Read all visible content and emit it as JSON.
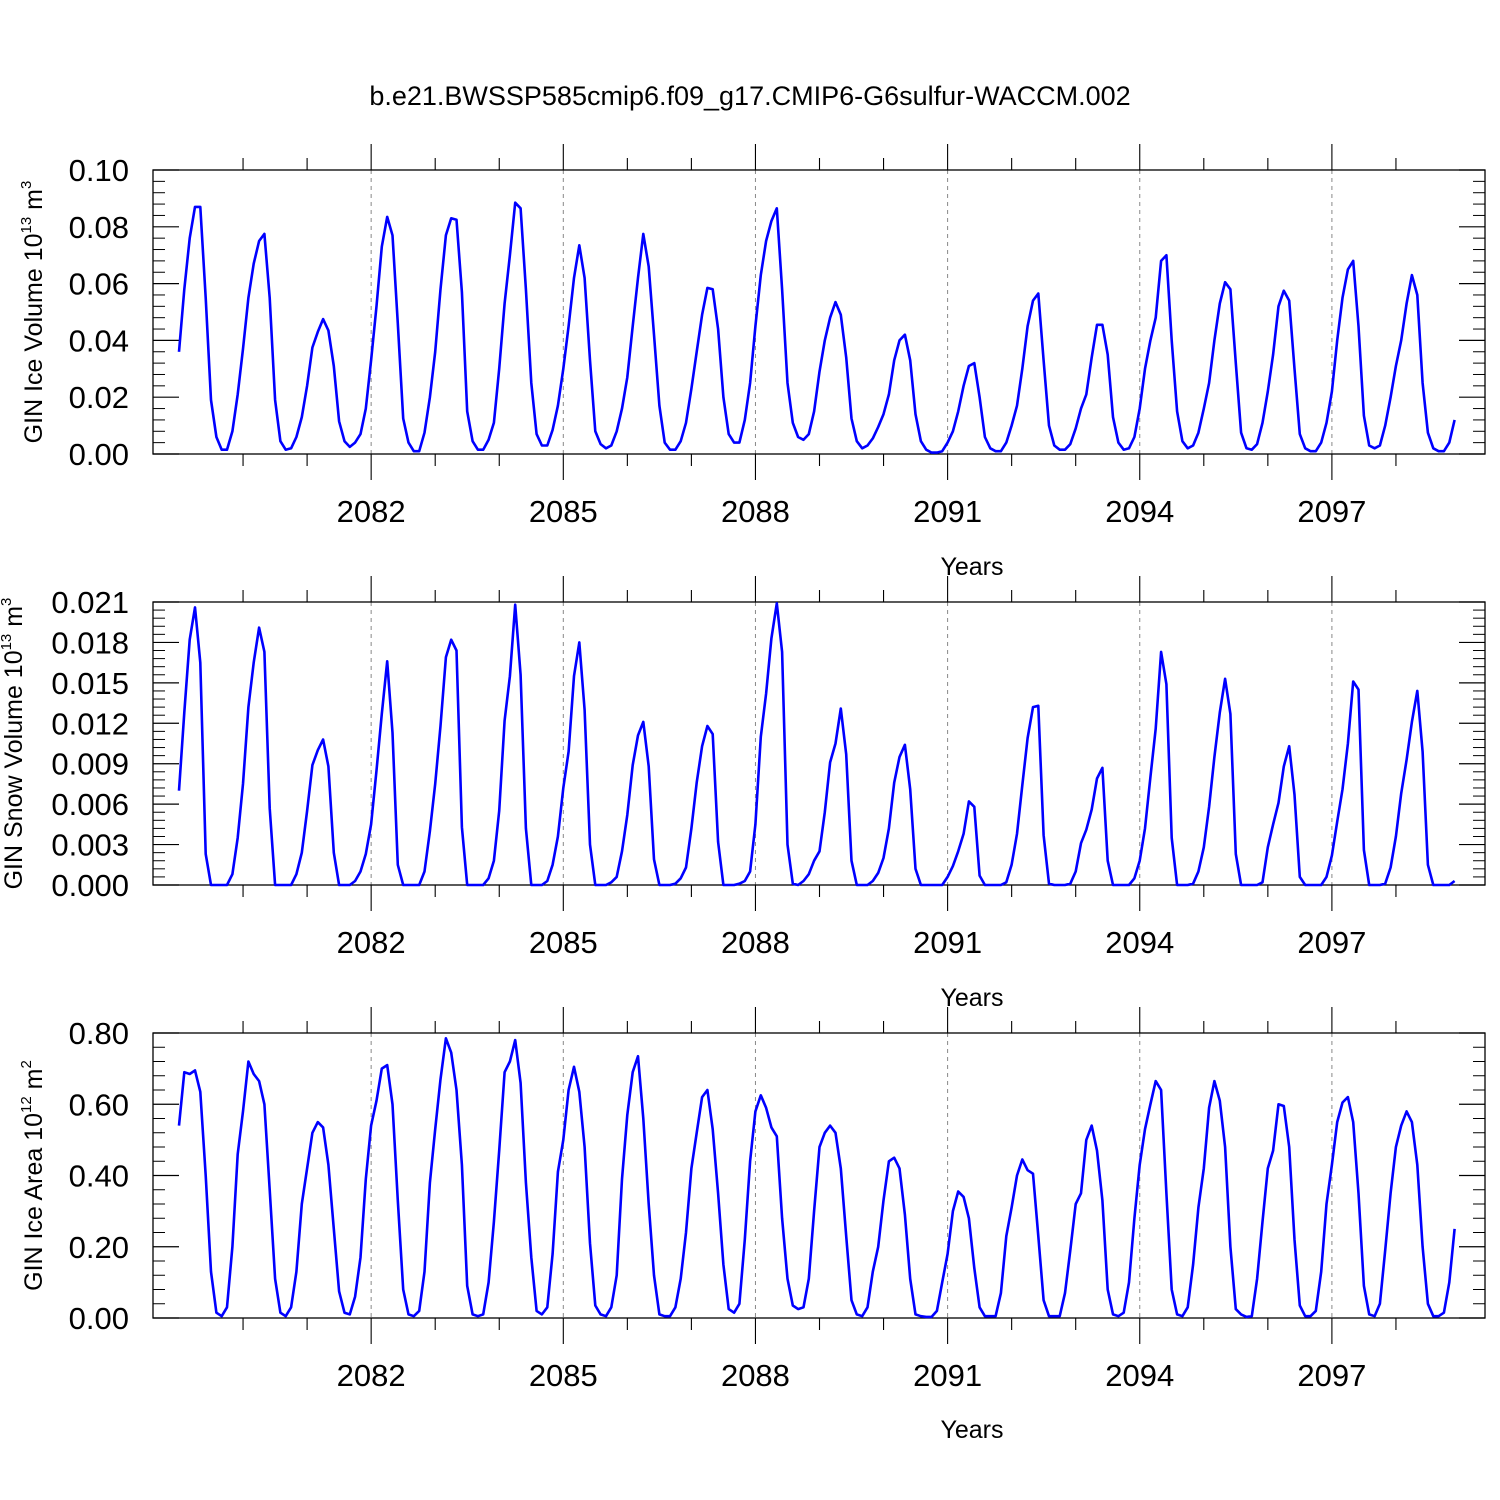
{
  "figure_title": "b.e21.BWSSP585cmip6.f09_g17.CMIP6-G6sulfur-WACCM.002",
  "colors": {
    "series": "#0000ff",
    "frame": "#000000",
    "grid": "#888888"
  },
  "chart_data": [
    {
      "type": "line",
      "name": "ice-volume",
      "ylabel_main": "GIN Ice Volume 10",
      "ylabel_exp": "13",
      "ylabel_unit": " m",
      "ylabel_unit_exp": "3",
      "xlabel": "Years",
      "xlim": [
        2079.0,
        2099.0
      ],
      "ylim": [
        0.0,
        0.1
      ],
      "yticks": [
        0.0,
        0.02,
        0.04,
        0.06,
        0.08,
        0.1
      ],
      "ytick_labels": [
        "0.00",
        "0.02",
        "0.04",
        "0.06",
        "0.08",
        "0.10"
      ],
      "xticks": [
        2082,
        2085,
        2088,
        2091,
        2094,
        2097
      ],
      "xtick_labels": [
        "2082",
        "2085",
        "2088",
        "2091",
        "2094",
        "2097"
      ],
      "grid_x": true,
      "series": [
        {
          "x_start": 2079.0,
          "x_step": 0.08333,
          "values": [
            0.036,
            0.058,
            0.076,
            0.087,
            0.087,
            0.055,
            0.019,
            0.006,
            0.0015,
            0.0015,
            0.008,
            0.021,
            0.037,
            0.055,
            0.067,
            0.075,
            0.0775,
            0.055,
            0.019,
            0.0045,
            0.0015,
            0.002,
            0.006,
            0.013,
            0.024,
            0.0375,
            0.043,
            0.0475,
            0.0435,
            0.031,
            0.0115,
            0.0045,
            0.0025,
            0.004,
            0.007,
            0.016,
            0.033,
            0.052,
            0.073,
            0.0835,
            0.077,
            0.046,
            0.0125,
            0.004,
            0.001,
            0.001,
            0.0075,
            0.02,
            0.036,
            0.058,
            0.077,
            0.083,
            0.0825,
            0.057,
            0.015,
            0.0045,
            0.0015,
            0.0015,
            0.005,
            0.011,
            0.03,
            0.053,
            0.07,
            0.0885,
            0.0865,
            0.058,
            0.025,
            0.007,
            0.003,
            0.003,
            0.0085,
            0.017,
            0.03,
            0.045,
            0.062,
            0.0735,
            0.062,
            0.033,
            0.008,
            0.0035,
            0.002,
            0.003,
            0.008,
            0.016,
            0.027,
            0.045,
            0.062,
            0.0775,
            0.066,
            0.042,
            0.017,
            0.004,
            0.0015,
            0.0015,
            0.0045,
            0.011,
            0.023,
            0.036,
            0.049,
            0.0585,
            0.058,
            0.044,
            0.02,
            0.007,
            0.004,
            0.004,
            0.012,
            0.025,
            0.045,
            0.063,
            0.075,
            0.082,
            0.0865,
            0.058,
            0.025,
            0.011,
            0.006,
            0.005,
            0.007,
            0.015,
            0.029,
            0.04,
            0.048,
            0.0535,
            0.049,
            0.034,
            0.0125,
            0.0045,
            0.002,
            0.003,
            0.0055,
            0.0095,
            0.014,
            0.021,
            0.033,
            0.04,
            0.042,
            0.033,
            0.014,
            0.0045,
            0.0015,
            0.0005,
            0.0005,
            0.001,
            0.004,
            0.008,
            0.015,
            0.024,
            0.031,
            0.032,
            0.02,
            0.006,
            0.002,
            0.001,
            0.001,
            0.004,
            0.01,
            0.017,
            0.03,
            0.045,
            0.054,
            0.0565,
            0.033,
            0.01,
            0.003,
            0.0015,
            0.0015,
            0.0035,
            0.009,
            0.016,
            0.021,
            0.034,
            0.0455,
            0.0455,
            0.035,
            0.013,
            0.004,
            0.0015,
            0.002,
            0.006,
            0.016,
            0.03,
            0.04,
            0.048,
            0.068,
            0.07,
            0.04,
            0.015,
            0.0045,
            0.002,
            0.003,
            0.0075,
            0.016,
            0.025,
            0.04,
            0.053,
            0.0605,
            0.058,
            0.032,
            0.0075,
            0.002,
            0.0015,
            0.0035,
            0.011,
            0.022,
            0.035,
            0.052,
            0.0575,
            0.054,
            0.03,
            0.007,
            0.002,
            0.001,
            0.001,
            0.004,
            0.011,
            0.022,
            0.04,
            0.055,
            0.065,
            0.068,
            0.045,
            0.0135,
            0.003,
            0.002,
            0.003,
            0.01,
            0.02,
            0.031,
            0.04,
            0.053,
            0.063,
            0.056,
            0.025,
            0.0075,
            0.002,
            0.001,
            0.001,
            0.004,
            0.012
          ]
        }
      ]
    },
    {
      "type": "line",
      "name": "snow-volume",
      "ylabel_main": "GIN Snow Volume 10",
      "ylabel_exp": "13",
      "ylabel_unit": " m",
      "ylabel_unit_exp": "3",
      "xlabel": "Years",
      "xlim": [
        2079.0,
        2099.0
      ],
      "ylim": [
        0.0,
        0.021
      ],
      "yticks": [
        0.0,
        0.003,
        0.006,
        0.009,
        0.012,
        0.015,
        0.018,
        0.021
      ],
      "ytick_labels": [
        "0.000",
        "0.003",
        "0.006",
        "0.009",
        "0.012",
        "0.015",
        "0.018",
        "0.021"
      ],
      "xticks": [
        2082,
        2085,
        2088,
        2091,
        2094,
        2097
      ],
      "xtick_labels": [
        "2082",
        "2085",
        "2088",
        "2091",
        "2094",
        "2097"
      ],
      "grid_x": true,
      "series": [
        {
          "x_start": 2079.0,
          "x_step": 0.08333,
          "values": [
            0.007,
            0.0128,
            0.0182,
            0.0206,
            0.0165,
            0.0023,
            0.0,
            0.0,
            0.0,
            0.0,
            0.0008,
            0.0035,
            0.0075,
            0.0132,
            0.0165,
            0.0191,
            0.0173,
            0.0057,
            0.0,
            0.0,
            0.0,
            0.0,
            0.0008,
            0.0024,
            0.0055,
            0.0089,
            0.01,
            0.0108,
            0.0088,
            0.0024,
            0.0,
            0.0,
            0.0,
            0.0003,
            0.001,
            0.0023,
            0.0045,
            0.0085,
            0.0127,
            0.0166,
            0.0113,
            0.0015,
            0.0,
            0.0,
            0.0,
            0.0,
            0.001,
            0.004,
            0.0075,
            0.0118,
            0.0169,
            0.0182,
            0.0174,
            0.0043,
            0.0,
            0.0,
            0.0,
            0.0,
            0.0005,
            0.0018,
            0.0055,
            0.0122,
            0.0155,
            0.0208,
            0.0156,
            0.0042,
            0.0,
            0.0,
            0.0,
            0.0003,
            0.0015,
            0.0036,
            0.0072,
            0.0099,
            0.0155,
            0.018,
            0.013,
            0.003,
            0.0,
            0.0,
            0.0,
            0.0002,
            0.0006,
            0.0025,
            0.0052,
            0.0089,
            0.0111,
            0.0121,
            0.0088,
            0.0019,
            0.0,
            0.0,
            0.0,
            0.0001,
            0.0005,
            0.0013,
            0.0042,
            0.0076,
            0.0103,
            0.0118,
            0.0112,
            0.0032,
            0.0,
            0.0,
            0.0,
            0.0001,
            0.0003,
            0.001,
            0.0045,
            0.011,
            0.0142,
            0.0183,
            0.0209,
            0.0173,
            0.003,
            0.0001,
            0.0,
            0.0003,
            0.0008,
            0.0018,
            0.0025,
            0.0054,
            0.0091,
            0.0105,
            0.0131,
            0.0097,
            0.0018,
            0.0,
            0.0,
            0.0,
            0.0003,
            0.0009,
            0.002,
            0.0042,
            0.0076,
            0.0095,
            0.0104,
            0.0071,
            0.0012,
            0.0,
            0.0,
            0.0,
            0.0,
            0.0,
            0.0006,
            0.0014,
            0.0025,
            0.0038,
            0.0062,
            0.0058,
            0.0007,
            0.0,
            0.0,
            0.0,
            0.0,
            0.0002,
            0.0015,
            0.0038,
            0.0074,
            0.0109,
            0.0132,
            0.0133,
            0.0037,
            0.0001,
            0.0,
            0.0,
            0.0,
            0.0001,
            0.001,
            0.0031,
            0.0041,
            0.0056,
            0.0079,
            0.0087,
            0.0018,
            0.0,
            0.0,
            0.0,
            0.0,
            0.0005,
            0.0018,
            0.0042,
            0.008,
            0.0116,
            0.0173,
            0.0149,
            0.0035,
            0.0,
            0.0,
            0.0,
            0.0001,
            0.001,
            0.0028,
            0.0058,
            0.0095,
            0.0128,
            0.0153,
            0.0127,
            0.0023,
            0.0,
            0.0,
            0.0,
            0.0,
            0.0002,
            0.0028,
            0.0045,
            0.0061,
            0.0088,
            0.0103,
            0.0067,
            0.0006,
            0.0,
            0.0,
            0.0,
            0.0,
            0.0006,
            0.0022,
            0.0047,
            0.0071,
            0.0105,
            0.0151,
            0.0145,
            0.0026,
            0.0,
            0.0,
            0.0,
            0.0001,
            0.0013,
            0.0036,
            0.0068,
            0.0093,
            0.0121,
            0.0144,
            0.0099,
            0.0015,
            0.0,
            0.0,
            0.0,
            0.0,
            0.0003
          ]
        }
      ]
    },
    {
      "type": "line",
      "name": "ice-area",
      "ylabel_main": "GIN Ice Area 10",
      "ylabel_exp": "12",
      "ylabel_unit": " m",
      "ylabel_unit_exp": "2",
      "xlabel": "Years",
      "xlim": [
        2079.0,
        2099.0
      ],
      "ylim": [
        0.0,
        0.8
      ],
      "yticks": [
        0.0,
        0.2,
        0.4,
        0.6,
        0.8
      ],
      "ytick_labels": [
        "0.00",
        "0.20",
        "0.40",
        "0.60",
        "0.80"
      ],
      "xticks": [
        2082,
        2085,
        2088,
        2091,
        2094,
        2097
      ],
      "xtick_labels": [
        "2082",
        "2085",
        "2088",
        "2091",
        "2094",
        "2097"
      ],
      "grid_x": true,
      "series": [
        {
          "x_start": 2079.0,
          "x_step": 0.08333,
          "values": [
            0.54,
            0.69,
            0.685,
            0.695,
            0.635,
            0.4,
            0.13,
            0.015,
            0.005,
            0.03,
            0.2,
            0.46,
            0.58,
            0.72,
            0.685,
            0.665,
            0.6,
            0.36,
            0.11,
            0.015,
            0.005,
            0.03,
            0.13,
            0.32,
            0.42,
            0.52,
            0.55,
            0.535,
            0.43,
            0.25,
            0.075,
            0.015,
            0.01,
            0.06,
            0.17,
            0.39,
            0.54,
            0.61,
            0.7,
            0.71,
            0.6,
            0.33,
            0.08,
            0.01,
            0.005,
            0.02,
            0.13,
            0.38,
            0.53,
            0.67,
            0.785,
            0.745,
            0.64,
            0.43,
            0.09,
            0.01,
            0.005,
            0.01,
            0.1,
            0.27,
            0.47,
            0.69,
            0.72,
            0.78,
            0.66,
            0.38,
            0.17,
            0.02,
            0.01,
            0.03,
            0.18,
            0.41,
            0.5,
            0.64,
            0.705,
            0.635,
            0.48,
            0.21,
            0.035,
            0.01,
            0.005,
            0.03,
            0.12,
            0.39,
            0.57,
            0.69,
            0.735,
            0.56,
            0.32,
            0.12,
            0.01,
            0.005,
            0.005,
            0.03,
            0.11,
            0.24,
            0.42,
            0.52,
            0.62,
            0.64,
            0.53,
            0.35,
            0.15,
            0.025,
            0.015,
            0.04,
            0.22,
            0.44,
            0.58,
            0.625,
            0.59,
            0.535,
            0.51,
            0.28,
            0.11,
            0.035,
            0.025,
            0.03,
            0.11,
            0.3,
            0.48,
            0.52,
            0.54,
            0.52,
            0.42,
            0.23,
            0.05,
            0.01,
            0.005,
            0.03,
            0.13,
            0.2,
            0.33,
            0.44,
            0.45,
            0.42,
            0.29,
            0.11,
            0.01,
            0.005,
            0.003,
            0.003,
            0.02,
            0.1,
            0.18,
            0.3,
            0.355,
            0.34,
            0.28,
            0.14,
            0.03,
            0.005,
            0.005,
            0.005,
            0.07,
            0.23,
            0.31,
            0.4,
            0.445,
            0.415,
            0.405,
            0.23,
            0.05,
            0.005,
            0.005,
            0.005,
            0.07,
            0.19,
            0.32,
            0.35,
            0.5,
            0.54,
            0.47,
            0.33,
            0.08,
            0.01,
            0.005,
            0.015,
            0.1,
            0.28,
            0.43,
            0.53,
            0.6,
            0.665,
            0.64,
            0.35,
            0.08,
            0.01,
            0.005,
            0.03,
            0.15,
            0.31,
            0.42,
            0.59,
            0.665,
            0.61,
            0.48,
            0.2,
            0.025,
            0.01,
            0.003,
            0.005,
            0.11,
            0.27,
            0.42,
            0.47,
            0.6,
            0.595,
            0.48,
            0.22,
            0.035,
            0.005,
            0.005,
            0.02,
            0.13,
            0.32,
            0.43,
            0.55,
            0.605,
            0.62,
            0.55,
            0.35,
            0.09,
            0.01,
            0.005,
            0.04,
            0.19,
            0.35,
            0.48,
            0.54,
            0.58,
            0.55,
            0.43,
            0.2,
            0.04,
            0.005,
            0.005,
            0.015,
            0.1,
            0.25
          ]
        }
      ]
    }
  ]
}
